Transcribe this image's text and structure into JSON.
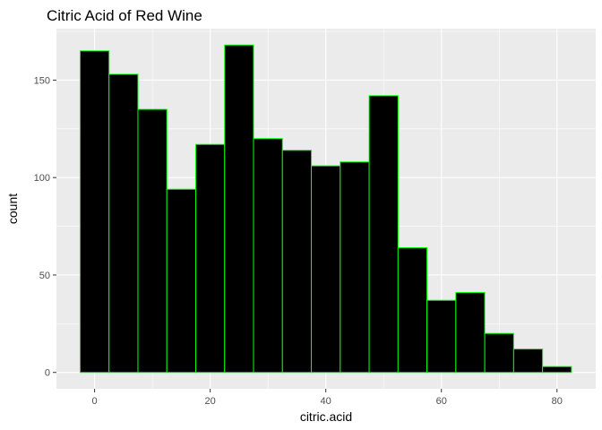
{
  "chart_data": {
    "type": "bar",
    "title": "Citric Acid of Red Wine",
    "xlabel": "citric.acid",
    "ylabel": "count",
    "bin_width": 5,
    "bins": [
      {
        "x": 0,
        "count": 165
      },
      {
        "x": 5,
        "count": 153
      },
      {
        "x": 10,
        "count": 135
      },
      {
        "x": 15,
        "count": 94
      },
      {
        "x": 20,
        "count": 117
      },
      {
        "x": 25,
        "count": 168
      },
      {
        "x": 30,
        "count": 120
      },
      {
        "x": 35,
        "count": 114
      },
      {
        "x": 40,
        "count": 106
      },
      {
        "x": 45,
        "count": 108
      },
      {
        "x": 50,
        "count": 142
      },
      {
        "x": 55,
        "count": 64
      },
      {
        "x": 60,
        "count": 37
      },
      {
        "x": 65,
        "count": 41
      },
      {
        "x": 70,
        "count": 20
      },
      {
        "x": 75,
        "count": 12
      },
      {
        "x": 80,
        "count": 3
      }
    ],
    "xlim": [
      -6.6,
      86.7
    ],
    "ylim": [
      -8.4,
      176.4
    ],
    "x_ticks": [
      0,
      20,
      40,
      60,
      80
    ],
    "x_tick_labels": [
      "0",
      "20",
      "40",
      "60",
      "80"
    ],
    "y_ticks": [
      0,
      50,
      100,
      150
    ],
    "y_tick_labels": [
      "0",
      "50",
      "100",
      "150"
    ],
    "grid": true,
    "legend": "none",
    "colors": {
      "panel_background": "#ebebeb",
      "grid_major": "#ffffff",
      "bar_fill": "#000000",
      "bar_outline": "#00ff00"
    }
  }
}
